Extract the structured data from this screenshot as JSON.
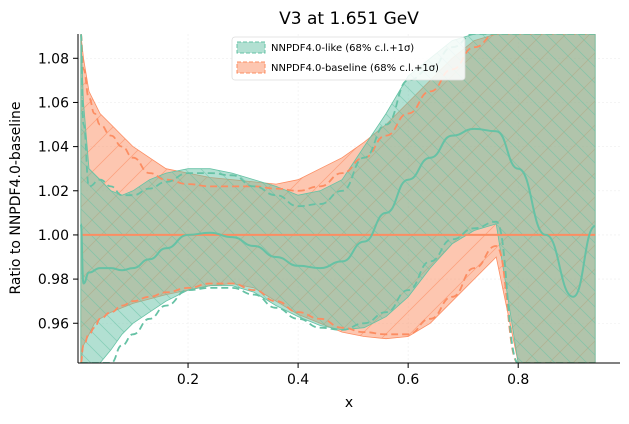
{
  "chart_data": {
    "type": "area",
    "title": "V3 at 1.651 GeV",
    "xlabel": "x",
    "ylabel": "Ratio to NNPDF4.0-baseline",
    "xlim": [
      0.0,
      0.985
    ],
    "ylim": [
      0.942,
      1.091
    ],
    "xticks": [
      0.2,
      0.4,
      0.6,
      0.8
    ],
    "xtick_labels": [
      "0.2",
      "0.4",
      "0.6",
      "0.8"
    ],
    "yticks": [
      0.96,
      0.98,
      1.0,
      1.02,
      1.04,
      1.06,
      1.08
    ],
    "ytick_labels": [
      "0.96",
      "0.98",
      "1.00",
      "1.02",
      "1.04",
      "1.06",
      "1.08"
    ],
    "grid": true,
    "legend_position": "top-center",
    "colors": {
      "like": "#66c2a5",
      "baseline": "#fc8d62"
    },
    "series": [
      {
        "name": "NNPDF4.0-like (68% c.l.+1σ)",
        "color": "#66c2a5",
        "x": [
          0.005,
          0.01,
          0.02,
          0.04,
          0.06,
          0.08,
          0.1,
          0.13,
          0.16,
          0.2,
          0.24,
          0.28,
          0.32,
          0.36,
          0.4,
          0.44,
          0.48,
          0.52,
          0.56,
          0.6,
          0.64,
          0.68,
          0.72,
          0.76,
          0.8,
          0.85,
          0.9,
          0.94
        ],
        "central": [
          1.005,
          0.978,
          0.983,
          0.985,
          0.985,
          0.984,
          0.985,
          0.989,
          0.994,
          1.0,
          1.001,
          0.999,
          0.995,
          0.99,
          0.986,
          0.985,
          0.988,
          0.997,
          1.01,
          1.025,
          1.035,
          1.045,
          1.048,
          1.047,
          1.03,
          1.0,
          0.972,
          1.004
        ],
        "upper": [
          1.091,
          1.05,
          1.022,
          1.025,
          1.022,
          1.018,
          1.018,
          1.021,
          1.024,
          1.028,
          1.028,
          1.027,
          1.022,
          1.018,
          1.013,
          1.014,
          1.02,
          1.035,
          1.05,
          1.07,
          1.075,
          1.085,
          1.091,
          1.091,
          1.091,
          1.091,
          1.091,
          1.091
        ],
        "lower": [
          0.942,
          0.942,
          0.942,
          0.942,
          0.942,
          0.95,
          0.955,
          0.962,
          0.968,
          0.975,
          0.976,
          0.976,
          0.973,
          0.967,
          0.962,
          0.958,
          0.957,
          0.96,
          0.965,
          0.975,
          0.988,
          0.998,
          1.003,
          1.006,
          0.942,
          0.942,
          0.942,
          0.942
        ],
        "band_upper": [
          1.091,
          1.06,
          1.03,
          1.025,
          1.02,
          1.018,
          1.02,
          1.025,
          1.028,
          1.03,
          1.03,
          1.028,
          1.025,
          1.022,
          1.018,
          1.02,
          1.025,
          1.04,
          1.055,
          1.072,
          1.08,
          1.088,
          1.091,
          1.091,
          1.091,
          1.091,
          1.091,
          1.091
        ],
        "band_lower": [
          0.942,
          0.942,
          0.942,
          0.942,
          0.948,
          0.955,
          0.96,
          0.965,
          0.97,
          0.975,
          0.977,
          0.977,
          0.974,
          0.968,
          0.963,
          0.959,
          0.957,
          0.958,
          0.963,
          0.972,
          0.985,
          0.996,
          1.002,
          1.005,
          0.942,
          0.942,
          0.942,
          0.942
        ]
      },
      {
        "name": "NNPDF4.0-baseline (68% c.l.+1σ)",
        "color": "#fc8d62",
        "x": [
          0.005,
          0.01,
          0.02,
          0.03,
          0.04,
          0.06,
          0.08,
          0.1,
          0.13,
          0.16,
          0.2,
          0.24,
          0.28,
          0.32,
          0.36,
          0.4,
          0.44,
          0.48,
          0.52,
          0.56,
          0.6,
          0.64,
          0.68,
          0.72,
          0.76,
          0.8,
          0.85,
          0.9,
          0.94
        ],
        "central": [
          1.0,
          1.0,
          1.0,
          1.0,
          1.0,
          1.0,
          1.0,
          1.0,
          1.0,
          1.0,
          1.0,
          1.0,
          1.0,
          1.0,
          1.0,
          1.0,
          1.0,
          1.0,
          1.0,
          1.0,
          1.0,
          1.0,
          1.0,
          1.0,
          1.0,
          1.0,
          1.0,
          1.0,
          1.0
        ],
        "upper": [
          1.091,
          1.075,
          1.062,
          1.055,
          1.05,
          1.045,
          1.04,
          1.035,
          1.028,
          1.025,
          1.023,
          1.022,
          1.022,
          1.022,
          1.021,
          1.02,
          1.022,
          1.028,
          1.035,
          1.045,
          1.055,
          1.065,
          1.075,
          1.085,
          1.091,
          1.091,
          1.091,
          1.091,
          1.091
        ],
        "lower": [
          0.942,
          0.95,
          0.955,
          0.958,
          0.962,
          0.965,
          0.968,
          0.97,
          0.972,
          0.974,
          0.976,
          0.978,
          0.978,
          0.975,
          0.97,
          0.965,
          0.962,
          0.958,
          0.956,
          0.955,
          0.955,
          0.962,
          0.972,
          0.985,
          0.995,
          0.942,
          0.942,
          0.942,
          0.942
        ],
        "band_upper": [
          1.091,
          1.08,
          1.065,
          1.06,
          1.055,
          1.05,
          1.045,
          1.04,
          1.035,
          1.03,
          1.028,
          1.026,
          1.025,
          1.024,
          1.023,
          1.025,
          1.03,
          1.035,
          1.042,
          1.05,
          1.06,
          1.07,
          1.08,
          1.088,
          1.091,
          1.091,
          1.091,
          1.091,
          1.091
        ],
        "band_lower": [
          0.942,
          0.95,
          0.955,
          0.96,
          0.962,
          0.965,
          0.967,
          0.969,
          0.971,
          0.973,
          0.975,
          0.977,
          0.978,
          0.976,
          0.97,
          0.964,
          0.96,
          0.956,
          0.954,
          0.953,
          0.954,
          0.96,
          0.97,
          0.98,
          0.99,
          0.942,
          0.942,
          0.942,
          0.942
        ]
      }
    ]
  }
}
